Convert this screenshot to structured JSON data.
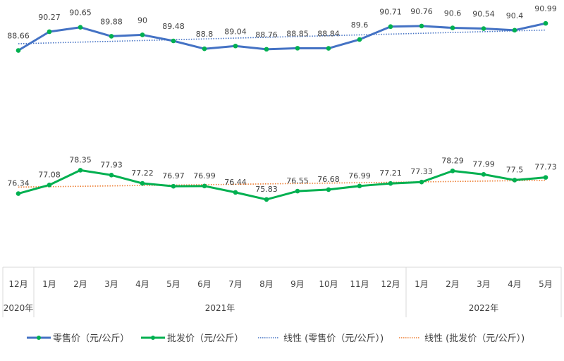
{
  "chart_data": {
    "type": "line",
    "title": "",
    "xlabel": "",
    "ylabel": "",
    "ylim": [
      70,
      93
    ],
    "grid": false,
    "legend": "bottom",
    "categories": [
      "12月",
      "1月",
      "2月",
      "3月",
      "4月",
      "5月",
      "6月",
      "7月",
      "8月",
      "9月",
      "10月",
      "11月",
      "12月",
      "1月",
      "2月",
      "3月",
      "4月",
      "5月"
    ],
    "year_groups": [
      {
        "label": "2020年",
        "span": 1
      },
      {
        "label": "2021年",
        "span": 12
      },
      {
        "label": "2022年",
        "span": 5
      }
    ],
    "series": [
      {
        "name": "零售价（元/公斤）",
        "color": "#4472C4",
        "marker_color": "#00B050",
        "values": [
          88.66,
          90.27,
          90.65,
          89.88,
          90,
          89.48,
          88.8,
          89.04,
          88.76,
          88.85,
          88.84,
          89.6,
          90.71,
          90.76,
          90.6,
          90.54,
          90.4,
          90.99
        ],
        "labels": [
          "88.66",
          "90.27",
          "90.65",
          "89.88",
          "90",
          "89.48",
          "88.8",
          "89.04",
          "88.76",
          "88.85",
          "88.84",
          "89.6",
          "90.71",
          "90.76",
          "90.6",
          "90.54",
          "90.4",
          "90.99"
        ]
      },
      {
        "name": "批发价（元/公斤）",
        "color": "#00B050",
        "marker_color": "#00B050",
        "values": [
          76.34,
          77.08,
          78.35,
          77.93,
          77.22,
          76.97,
          76.99,
          76.44,
          75.83,
          76.55,
          76.68,
          76.99,
          77.21,
          77.33,
          78.29,
          77.99,
          77.5,
          77.73
        ],
        "labels": [
          "76.34",
          "77.08",
          "78.35",
          "77.93",
          "77.22",
          "76.97",
          "76.99",
          "76.44",
          "75.83",
          "76.55",
          "76.68",
          "76.99",
          "77.21",
          "77.33",
          "78.29",
          "77.99",
          "77.5",
          "77.73"
        ]
      }
    ],
    "trendlines": [
      {
        "name": "线性 (零售价（元/公斤）)",
        "of_series": 0,
        "type": "linear",
        "color": "#4472C4"
      },
      {
        "name": "线性 (批发价（元/公斤）)",
        "of_series": 1,
        "type": "linear",
        "color": "#ED7D31"
      }
    ]
  }
}
